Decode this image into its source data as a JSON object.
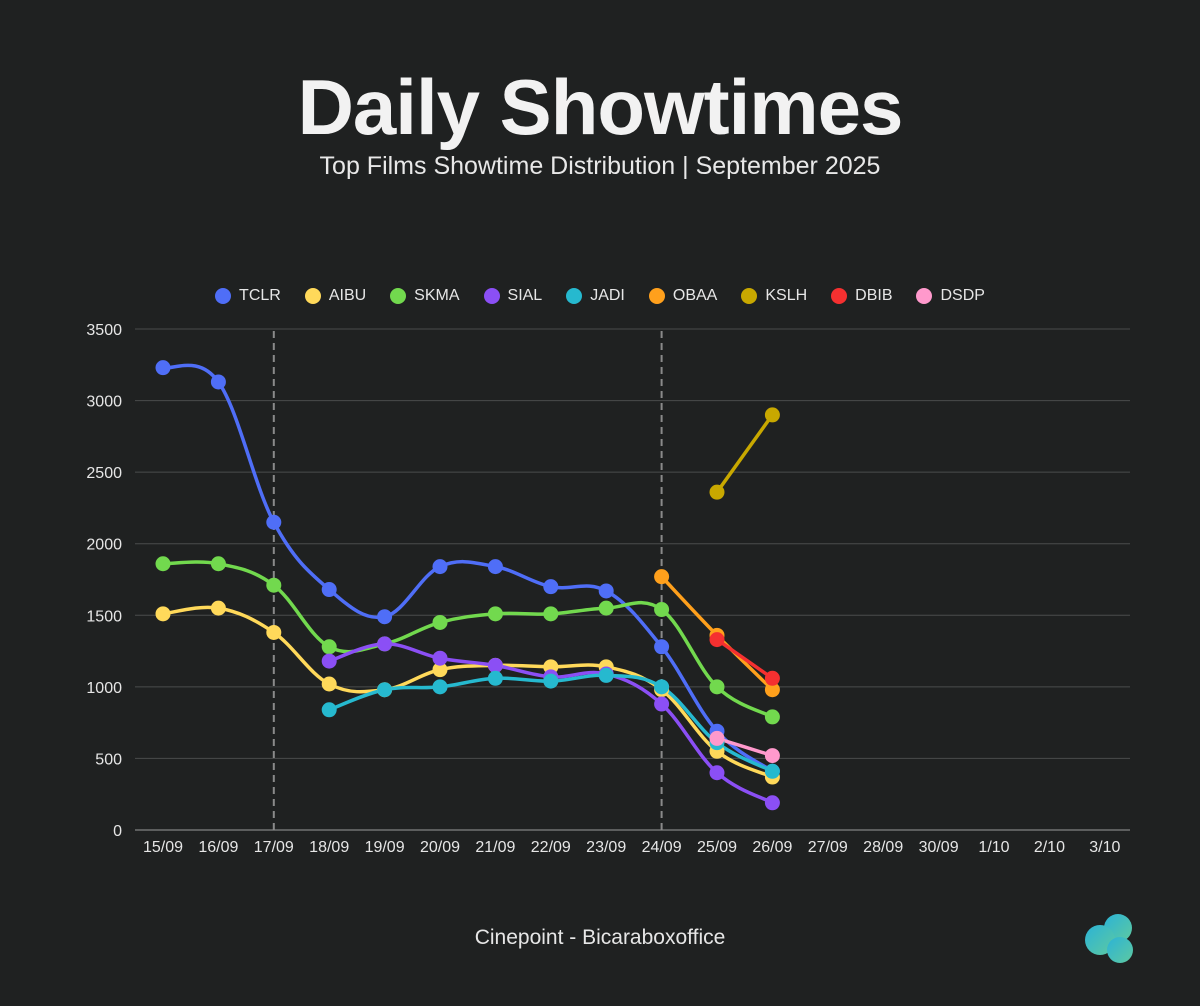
{
  "header": {
    "title": "Daily Showtimes",
    "subtitle": "Top Films Showtime Distribution | September 2025"
  },
  "footer": {
    "credit": "Cinepoint - Bicaraboxoffice"
  },
  "chart_data": {
    "type": "line",
    "title": "Daily Showtimes",
    "subtitle": "Top Films Showtime Distribution | September 2025",
    "xlabel": "",
    "ylabel": "",
    "categories": [
      "15/09",
      "16/09",
      "17/09",
      "18/09",
      "19/09",
      "20/09",
      "21/09",
      "22/09",
      "23/09",
      "24/09",
      "25/09",
      "26/09",
      "27/09",
      "28/09",
      "30/09",
      "1/10",
      "2/10",
      "3/10"
    ],
    "ylim": [
      0,
      3500
    ],
    "yticks": [
      0,
      500,
      1000,
      1500,
      2000,
      2500,
      3000,
      3500
    ],
    "grid": true,
    "legend_position": "top-center",
    "reference_lines": [
      "17/09",
      "24/09"
    ],
    "series": [
      {
        "name": "TCLR",
        "color": "#4f6ef7",
        "values": [
          3230,
          3130,
          2150,
          1680,
          1490,
          1840,
          1840,
          1700,
          1670,
          1280,
          690,
          410,
          null,
          null,
          null,
          null,
          null,
          null
        ]
      },
      {
        "name": "AIBU",
        "color": "#ffd95a",
        "values": [
          1510,
          1550,
          1380,
          1020,
          980,
          1120,
          1150,
          1140,
          1140,
          980,
          550,
          370,
          null,
          null,
          null,
          null,
          null,
          null
        ]
      },
      {
        "name": "SKMA",
        "color": "#72d94e",
        "values": [
          1860,
          1860,
          1710,
          1280,
          1300,
          1450,
          1510,
          1510,
          1550,
          1540,
          1000,
          790,
          null,
          null,
          null,
          null,
          null,
          null
        ]
      },
      {
        "name": "SIAL",
        "color": "#8b4ff5",
        "values": [
          null,
          null,
          null,
          1180,
          1300,
          1200,
          1150,
          1070,
          1090,
          880,
          400,
          190,
          null,
          null,
          null,
          null,
          null,
          null
        ]
      },
      {
        "name": "JADI",
        "color": "#26b9cf",
        "values": [
          null,
          null,
          null,
          840,
          980,
          1000,
          1060,
          1040,
          1080,
          1000,
          610,
          410,
          null,
          null,
          null,
          null,
          null,
          null
        ]
      },
      {
        "name": "OBAA",
        "color": "#ffa01c",
        "values": [
          null,
          null,
          null,
          null,
          null,
          null,
          null,
          null,
          null,
          1770,
          1360,
          980,
          null,
          null,
          null,
          null,
          null,
          null
        ]
      },
      {
        "name": "KSLH",
        "color": "#c8a800",
        "values": [
          null,
          null,
          null,
          null,
          null,
          null,
          null,
          null,
          null,
          null,
          2360,
          2900,
          null,
          null,
          null,
          null,
          null,
          null
        ]
      },
      {
        "name": "DBIB",
        "color": "#f53030",
        "values": [
          null,
          null,
          null,
          null,
          null,
          null,
          null,
          null,
          null,
          null,
          1330,
          1060,
          null,
          null,
          null,
          null,
          null,
          null
        ]
      },
      {
        "name": "DSDP",
        "color": "#ff99cc",
        "values": [
          null,
          null,
          null,
          null,
          null,
          null,
          null,
          null,
          null,
          null,
          640,
          520,
          null,
          null,
          null,
          null,
          null,
          null
        ]
      }
    ]
  }
}
